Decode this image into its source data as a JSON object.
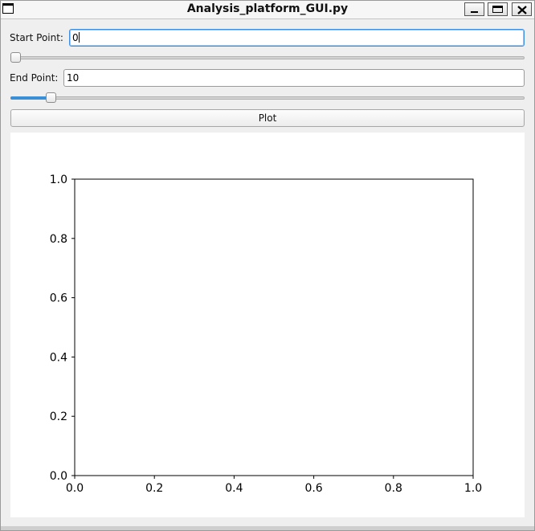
{
  "window": {
    "title": "Analysis_platform_GUI.py"
  },
  "controls": {
    "start_label": "Start Point:",
    "start_value": "0",
    "start_slider_fraction": 0.0,
    "end_label": "End Point:",
    "end_value": "10",
    "end_slider_fraction": 0.07,
    "plot_label": "Plot"
  },
  "icons": {
    "app": "window-icon",
    "minimize": "minimize-icon",
    "maximize": "maximize-icon",
    "close": "close-icon"
  },
  "chart_data": {
    "type": "line",
    "series": [],
    "xlim": [
      0.0,
      1.0
    ],
    "ylim": [
      0.0,
      1.0
    ],
    "x_ticks": [
      "0.0",
      "0.2",
      "0.4",
      "0.6",
      "0.8",
      "1.0"
    ],
    "y_ticks": [
      "0.0",
      "0.2",
      "0.4",
      "0.6",
      "0.8",
      "1.0"
    ],
    "title": "",
    "xlabel": "",
    "ylabel": "",
    "grid": false
  }
}
